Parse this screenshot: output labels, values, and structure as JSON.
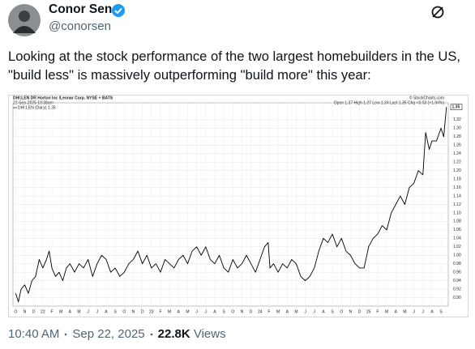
{
  "tweet": {
    "name": "Conor Sen",
    "handle": "@conorsen",
    "text": "Looking at the stock performance of the two largest homebuilders in the US, \"build less\" is massively outperforming \"build more\" this year:",
    "time": "10:40 AM",
    "date": "Sep 22, 2025",
    "views": "22.8K",
    "views_label": "Views"
  },
  "chart_data": {
    "type": "line",
    "title": "DHI:LEN DR Horton Inc /Lennar Corp. NYSE + BATS",
    "subtitle": "22-Sep-2025 10:38am",
    "quote": "Open 1.37 High 1.37 Low 1.34 Last 1.35 Chg +0.03 (+1.94%)",
    "source": "© StockCharts.com",
    "x": [
      0,
      0.3,
      0.6,
      1,
      1.4,
      1.8,
      2.2,
      2.6,
      3,
      3.4,
      3.7,
      4,
      4.4,
      4.8,
      5.2,
      5.6,
      6,
      6.5,
      7,
      7.5,
      8,
      8.5,
      9,
      9.5,
      10,
      10.5,
      11,
      11.5,
      12,
      12.5,
      13,
      13.5,
      14,
      14.5,
      15,
      15.5,
      16,
      16.5,
      17,
      17.5,
      18,
      18.5,
      19,
      19.5,
      20,
      20.5,
      21,
      21.5,
      22,
      22.5,
      23,
      23.5,
      24,
      24.5,
      25,
      25.5,
      26,
      26.5,
      27,
      27.5,
      27.9,
      28.1,
      28.5,
      29,
      29.5,
      30,
      30.5,
      31,
      31.5,
      32,
      32.5,
      33,
      33.5,
      34,
      34.5,
      35,
      35.5,
      36,
      36.5,
      37,
      37.5,
      38,
      38.5,
      39,
      39.5,
      40,
      40.5,
      41,
      41.5,
      42,
      42.5,
      43,
      43.5,
      44,
      44.5,
      45,
      45.3,
      45.7,
      46,
      46.5,
      47,
      47.3,
      47.6
    ],
    "series": [
      {
        "name": "DHI:LEN (Daily) 1.35",
        "color": "#000000",
        "values": [
          0.91,
          0.89,
          0.92,
          0.93,
          0.91,
          0.94,
          0.95,
          0.99,
          0.97,
          0.99,
          1.01,
          0.97,
          0.95,
          0.96,
          0.94,
          0.97,
          0.98,
          0.96,
          0.98,
          0.97,
          0.99,
          0.95,
          0.98,
          1.0,
          0.99,
          0.96,
          0.97,
          0.95,
          0.96,
          0.98,
          0.99,
          1.01,
          0.98,
          1.0,
          0.97,
          0.98,
          0.96,
          0.99,
          0.98,
          0.97,
          0.99,
          1.0,
          0.98,
          1.01,
          1.02,
          1.0,
          1.02,
          0.99,
          0.98,
          1.0,
          0.97,
          0.96,
          0.99,
          0.97,
          0.98,
          1.0,
          0.98,
          0.96,
          0.99,
          1.02,
          1.03,
          0.97,
          0.98,
          0.96,
          0.98,
          0.97,
          0.99,
          0.98,
          0.95,
          0.94,
          0.95,
          0.97,
          1.01,
          1.04,
          1.03,
          1.05,
          1.02,
          1.04,
          1.01,
          1.0,
          0.98,
          0.97,
          0.97,
          1.02,
          1.04,
          1.05,
          1.07,
          1.06,
          1.1,
          1.12,
          1.14,
          1.12,
          1.16,
          1.17,
          1.2,
          1.19,
          1.29,
          1.25,
          1.27,
          1.27,
          1.3,
          1.28,
          1.35
        ]
      }
    ],
    "xlim": [
      -0.3,
      47.8
    ],
    "xticks": [
      {
        "value": 0,
        "label": "O"
      },
      {
        "value": 1,
        "label": "N"
      },
      {
        "value": 2,
        "label": "D"
      },
      {
        "value": 3,
        "label": "22"
      },
      {
        "value": 4,
        "label": "F"
      },
      {
        "value": 5,
        "label": "M"
      },
      {
        "value": 6,
        "label": "A"
      },
      {
        "value": 7,
        "label": "M"
      },
      {
        "value": 8,
        "label": "J"
      },
      {
        "value": 9,
        "label": "J"
      },
      {
        "value": 10,
        "label": "A"
      },
      {
        "value": 11,
        "label": "S"
      },
      {
        "value": 12,
        "label": "O"
      },
      {
        "value": 13,
        "label": "N"
      },
      {
        "value": 14,
        "label": "D"
      },
      {
        "value": 15,
        "label": "23"
      },
      {
        "value": 16,
        "label": "F"
      },
      {
        "value": 17,
        "label": "M"
      },
      {
        "value": 18,
        "label": "A"
      },
      {
        "value": 19,
        "label": "M"
      },
      {
        "value": 20,
        "label": "J"
      },
      {
        "value": 21,
        "label": "J"
      },
      {
        "value": 22,
        "label": "A"
      },
      {
        "value": 23,
        "label": "S"
      },
      {
        "value": 24,
        "label": "O"
      },
      {
        "value": 25,
        "label": "N"
      },
      {
        "value": 26,
        "label": "D"
      },
      {
        "value": 27,
        "label": "24"
      },
      {
        "value": 28,
        "label": "F"
      },
      {
        "value": 29,
        "label": "M"
      },
      {
        "value": 30,
        "label": "A"
      },
      {
        "value": 31,
        "label": "M"
      },
      {
        "value": 32,
        "label": "J"
      },
      {
        "value": 33,
        "label": "J"
      },
      {
        "value": 34,
        "label": "A"
      },
      {
        "value": 35,
        "label": "S"
      },
      {
        "value": 36,
        "label": "O"
      },
      {
        "value": 37,
        "label": "N"
      },
      {
        "value": 38,
        "label": "D"
      },
      {
        "value": 39,
        "label": "25"
      },
      {
        "value": 40,
        "label": "F"
      },
      {
        "value": 41,
        "label": "M"
      },
      {
        "value": 42,
        "label": "A"
      },
      {
        "value": 43,
        "label": "M"
      },
      {
        "value": 44,
        "label": "J"
      },
      {
        "value": 45,
        "label": "J"
      },
      {
        "value": 46,
        "label": "A"
      },
      {
        "value": 47,
        "label": "S"
      }
    ],
    "ylim": [
      0.88,
      1.36
    ],
    "yticks": [
      {
        "value": 0.9,
        "label": "0.90"
      },
      0.92,
      0.94,
      0.96,
      0.98,
      {
        "value": 1.0,
        "label": "1.00"
      },
      1.02,
      1.04,
      1.06,
      1.08,
      {
        "value": 1.1,
        "label": "1.10"
      },
      1.12,
      1.14,
      1.16,
      1.18,
      {
        "value": 1.2,
        "label": "1.20"
      },
      1.22,
      1.24,
      1.26,
      1.28,
      {
        "value": 1.3,
        "label": "1.30"
      },
      1.32
    ],
    "grid": true
  }
}
